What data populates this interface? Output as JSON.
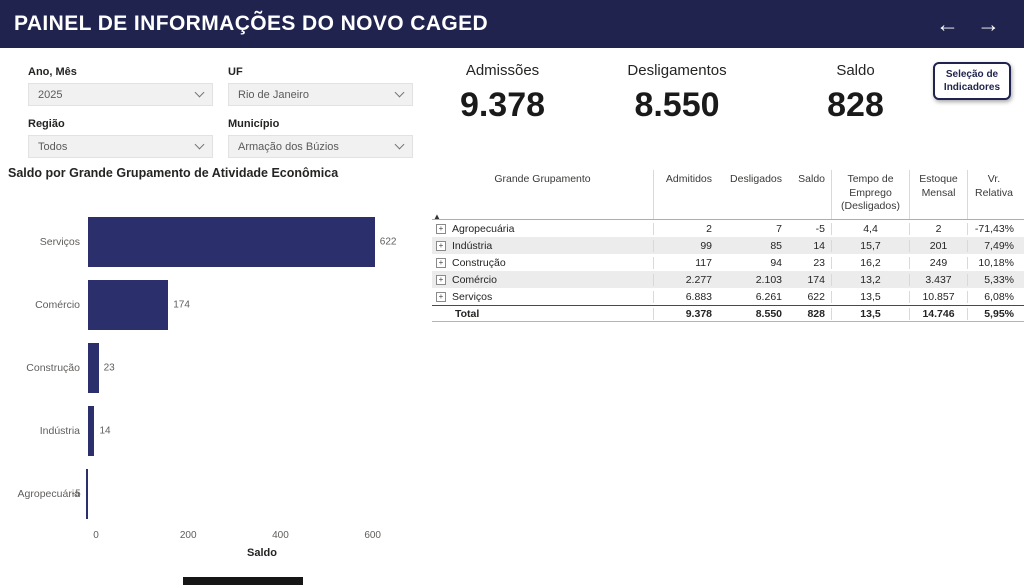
{
  "header": {
    "title": "PAINEL DE INFORMAÇÕES DO NOVO CAGED",
    "back_arrow": "←",
    "forward_arrow": "→"
  },
  "filters": {
    "ano_mes": {
      "label": "Ano, Mês",
      "value": "2025"
    },
    "uf": {
      "label": "UF",
      "value": "Rio de Janeiro"
    },
    "regiao": {
      "label": "Região",
      "value": "Todos"
    },
    "municipio": {
      "label": "Município",
      "value": "Armação dos Búzios"
    }
  },
  "kpis": {
    "admissoes": {
      "label": "Admissões",
      "value": "9.378"
    },
    "desligamentos": {
      "label": "Desligamentos",
      "value": "8.550"
    },
    "saldo": {
      "label": "Saldo",
      "value": "828"
    }
  },
  "selection_button": {
    "label": "Seleção de\nIndicadores"
  },
  "chart_data": {
    "type": "bar",
    "orientation": "horizontal",
    "title": "Saldo por Grande Grupamento de Atividade Econômica",
    "categories": [
      "Serviços",
      "Comércio",
      "Construção",
      "Indústria",
      "Agropecuária"
    ],
    "values": [
      622,
      174,
      23,
      14,
      -5
    ],
    "value_labels": [
      "622",
      "174",
      "23",
      "14",
      "-5"
    ],
    "xlabel": "Saldo",
    "x_ticks": [
      0,
      200,
      400,
      600
    ],
    "xlim": [
      0,
      720
    ],
    "bar_color": "#2b2f6c",
    "grid": false,
    "legend": false
  },
  "table": {
    "columns": [
      {
        "label": "Grande Grupamento"
      },
      {
        "label": "Admitidos"
      },
      {
        "label": "Desligados"
      },
      {
        "label": "Saldo"
      },
      {
        "label": "Tempo de\nEmprego\n(Desligados)"
      },
      {
        "label": "Estoque\nMensal"
      },
      {
        "label": "Vr.\nRelativa"
      }
    ],
    "rows": [
      {
        "name": "Agropecuária",
        "values": [
          "2",
          "7",
          "-5",
          "4,4",
          "2",
          "-71,43%"
        ]
      },
      {
        "name": "Indústria",
        "values": [
          "99",
          "85",
          "14",
          "15,7",
          "201",
          "7,49%"
        ]
      },
      {
        "name": "Construção",
        "values": [
          "117",
          "94",
          "23",
          "16,2",
          "249",
          "10,18%"
        ]
      },
      {
        "name": "Comércio",
        "values": [
          "2.277",
          "2.103",
          "174",
          "13,2",
          "3.437",
          "5,33%"
        ]
      },
      {
        "name": "Serviços",
        "values": [
          "6.883",
          "6.261",
          "622",
          "13,5",
          "10.857",
          "6,08%"
        ]
      }
    ],
    "total": {
      "name": "Total",
      "values": [
        "9.378",
        "8.550",
        "828",
        "13,5",
        "14.746",
        "5,95%"
      ]
    },
    "expand_icon": "+",
    "sort_indicator": "▲"
  },
  "colors": {
    "header_bg": "#1f234e",
    "accent": "#2b2f6c",
    "row_alt": "#ececec"
  }
}
